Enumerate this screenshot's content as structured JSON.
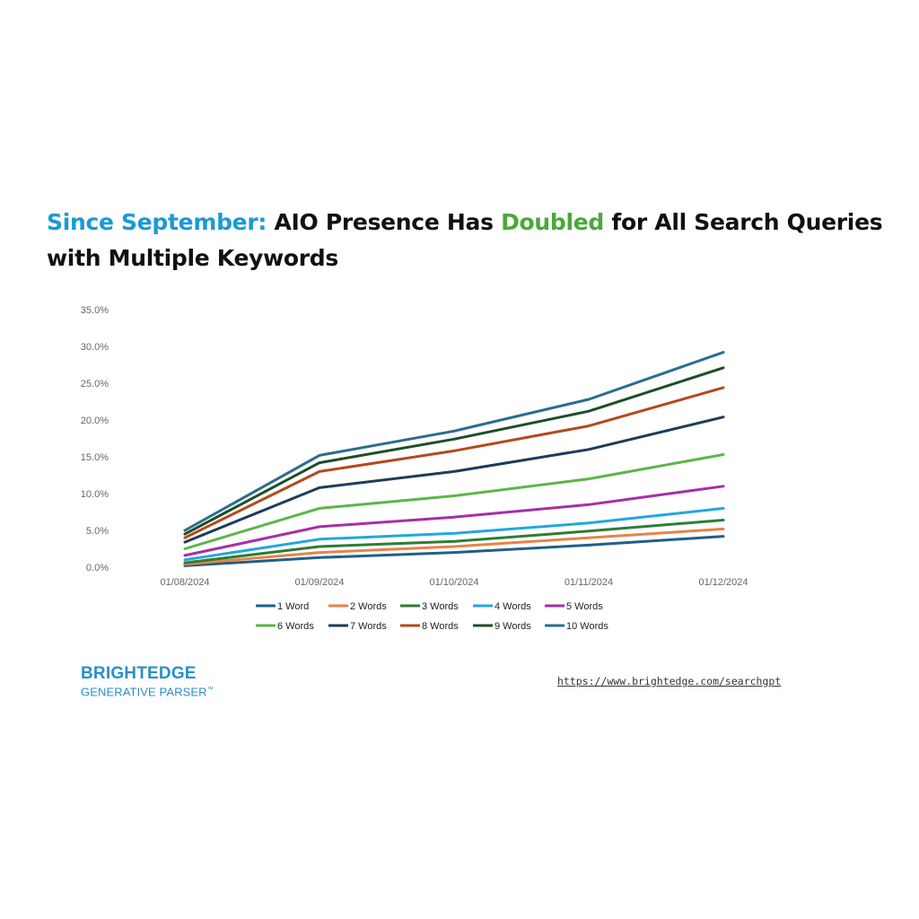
{
  "title": {
    "part1": "Since September:",
    "part2": " AIO Presence Has ",
    "part3": "Doubled",
    "part4": " for All Search Queries with Multiple Keywords"
  },
  "brand": {
    "line1": "BRIGHTEDGE",
    "line2": "GENERATIVE PARSER",
    "tm": "™"
  },
  "url": "https://www.brightedge.com/searchgpt",
  "chart_data": {
    "type": "line",
    "categories": [
      "01/08/2024",
      "01/09/2024",
      "01/10/2024",
      "01/11/2024",
      "01/12/2024"
    ],
    "ylim": [
      0,
      35
    ],
    "yticks": [
      "0.0%",
      "5.0%",
      "10.0%",
      "15.0%",
      "20.0%",
      "25.0%",
      "30.0%",
      "35.0%"
    ],
    "legend_position": "bottom",
    "series": [
      {
        "name": "1 Word",
        "color": "#1f5f8a",
        "values": [
          0.2,
          1.3,
          2.0,
          3.0,
          4.2
        ]
      },
      {
        "name": "2 Words",
        "color": "#e8824a",
        "values": [
          0.4,
          2.0,
          2.8,
          4.0,
          5.2
        ]
      },
      {
        "name": "3 Words",
        "color": "#2e7d32",
        "values": [
          0.6,
          2.8,
          3.5,
          4.9,
          6.4
        ]
      },
      {
        "name": "4 Words",
        "color": "#22a7e0",
        "values": [
          1.0,
          3.8,
          4.6,
          6.0,
          8.0
        ]
      },
      {
        "name": "5 Words",
        "color": "#a72ea7",
        "values": [
          1.6,
          5.5,
          6.8,
          8.5,
          11.0
        ]
      },
      {
        "name": "6 Words",
        "color": "#5cb54a",
        "values": [
          2.5,
          8.0,
          9.7,
          12.0,
          15.3
        ]
      },
      {
        "name": "7 Words",
        "color": "#1c3d5a",
        "values": [
          3.4,
          10.8,
          13.0,
          16.0,
          20.4
        ]
      },
      {
        "name": "8 Words",
        "color": "#b5491c",
        "values": [
          4.0,
          13.0,
          15.8,
          19.2,
          24.4
        ]
      },
      {
        "name": "9 Words",
        "color": "#1d4d2a",
        "values": [
          4.5,
          14.2,
          17.4,
          21.2,
          27.1
        ]
      },
      {
        "name": "10 Words",
        "color": "#2a6d8f",
        "values": [
          5.0,
          15.2,
          18.5,
          22.8,
          29.2
        ]
      }
    ]
  }
}
